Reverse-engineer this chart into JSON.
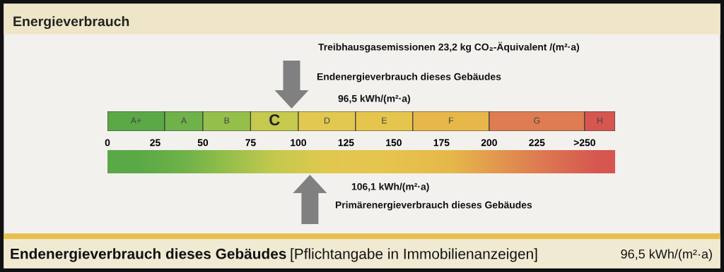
{
  "chart_data": {
    "type": "bar",
    "orientation": "horizontal",
    "stacked": true,
    "title": "Energieverbrauch",
    "categories": [
      null
    ],
    "xlim": [
      0,
      266
    ],
    "xticks": [
      0,
      25,
      50,
      75,
      100,
      125,
      150,
      175,
      200,
      225,
      {
        "value": 250,
        "label": ">250"
      }
    ],
    "series": [
      {
        "name": "A+",
        "color": "#5aa946",
        "values": [
          30
        ]
      },
      {
        "name": "A",
        "color": "#6fb24a",
        "values": [
          20
        ]
      },
      {
        "name": "B",
        "color": "#95bf4b",
        "values": [
          25
        ]
      },
      {
        "name": "C",
        "color": "#c5c94e",
        "values": [
          25
        ]
      },
      {
        "name": "D",
        "color": "#e2c850",
        "values": [
          30
        ]
      },
      {
        "name": "E",
        "color": "#e6c54e",
        "values": [
          30
        ]
      },
      {
        "name": "F",
        "color": "#e6b84a",
        "values": [
          40
        ]
      },
      {
        "name": "G",
        "color": "#de7d52",
        "values": [
          50
        ]
      },
      {
        "name": "H",
        "color": "#d65650",
        "values": [
          16
        ]
      }
    ],
    "annotations": [
      "Treibhausgasemissionen 23,2 kg CO₂-Äquivalent /(m²·a)",
      "Endenergieverbrauch dieses Gebäudes",
      "Primärenergieverbrauch dieses Gebäudes",
      "96,5 kWh/(m²·a)",
      "106,1 kWh/(m²·a)",
      "Endenergieverbrauch dieses Gebäudes",
      "[Pflichtangabe in Immobilienanzeigen]",
      "96,5 kWh/(m²·a)"
    ]
  }
}
